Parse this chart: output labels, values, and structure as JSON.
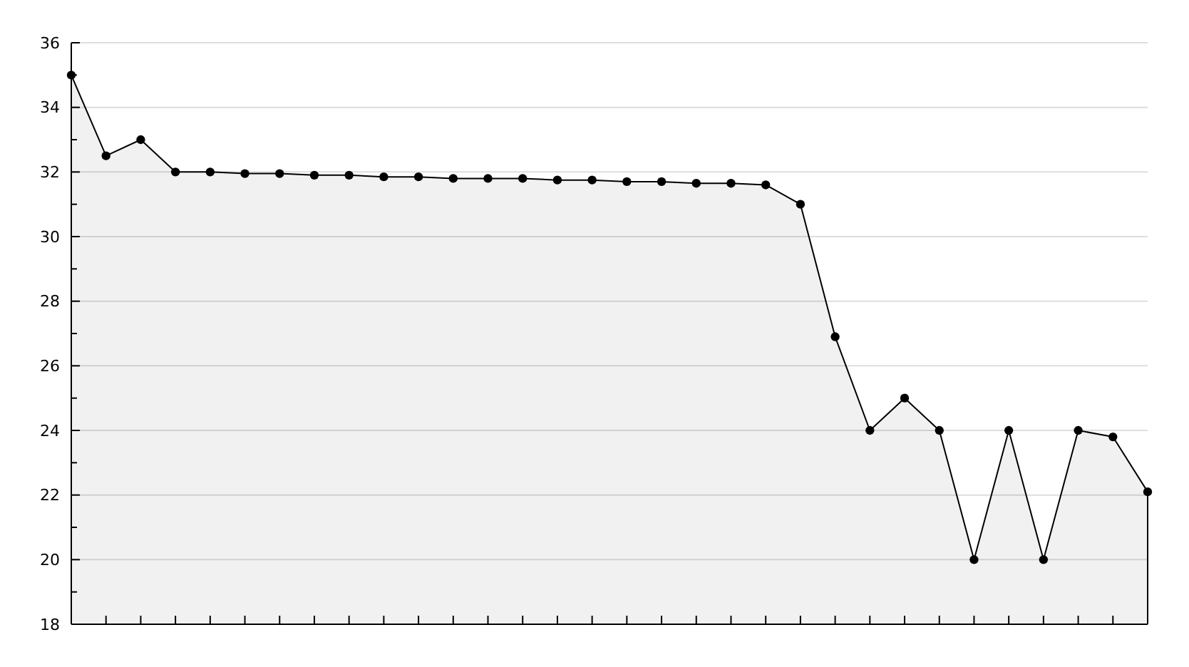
{
  "chart_data": {
    "type": "area",
    "categories": [
      null,
      null,
      null,
      null,
      null,
      null,
      null,
      null,
      null,
      null,
      null,
      null,
      null,
      null,
      null,
      null,
      null,
      null,
      null,
      null,
      null,
      null,
      null,
      null,
      null,
      null,
      null,
      null,
      null,
      null,
      null,
      null
    ],
    "series": [
      {
        "color": "#000000",
        "values": [
          35,
          32.5,
          33,
          32,
          32,
          31.95,
          31.95,
          31.9,
          31.9,
          31.85,
          31.85,
          31.8,
          31.8,
          31.8,
          31.75,
          31.75,
          31.7,
          31.7,
          31.65,
          31.65,
          31.6,
          31,
          26.9,
          24,
          25,
          24,
          20,
          24,
          20,
          24,
          23.8,
          22.1
        ]
      }
    ],
    "ylim": [
      18,
      36
    ],
    "yticks": [
      18,
      {
        "value": 19,
        "label": null
      },
      20,
      {
        "value": 21,
        "label": null
      },
      22,
      {
        "value": 23,
        "label": null
      },
      24,
      {
        "value": 25,
        "label": null
      },
      26,
      {
        "value": 27,
        "label": null
      },
      28,
      {
        "value": 29,
        "label": null
      },
      30,
      {
        "value": 31,
        "label": null
      },
      32,
      {
        "value": 33,
        "label": null
      },
      34,
      {
        "value": 35,
        "label": null
      },
      36
    ],
    "grid": "y",
    "marker": "circle",
    "line_style": "solid",
    "tick_labels": "y"
  }
}
